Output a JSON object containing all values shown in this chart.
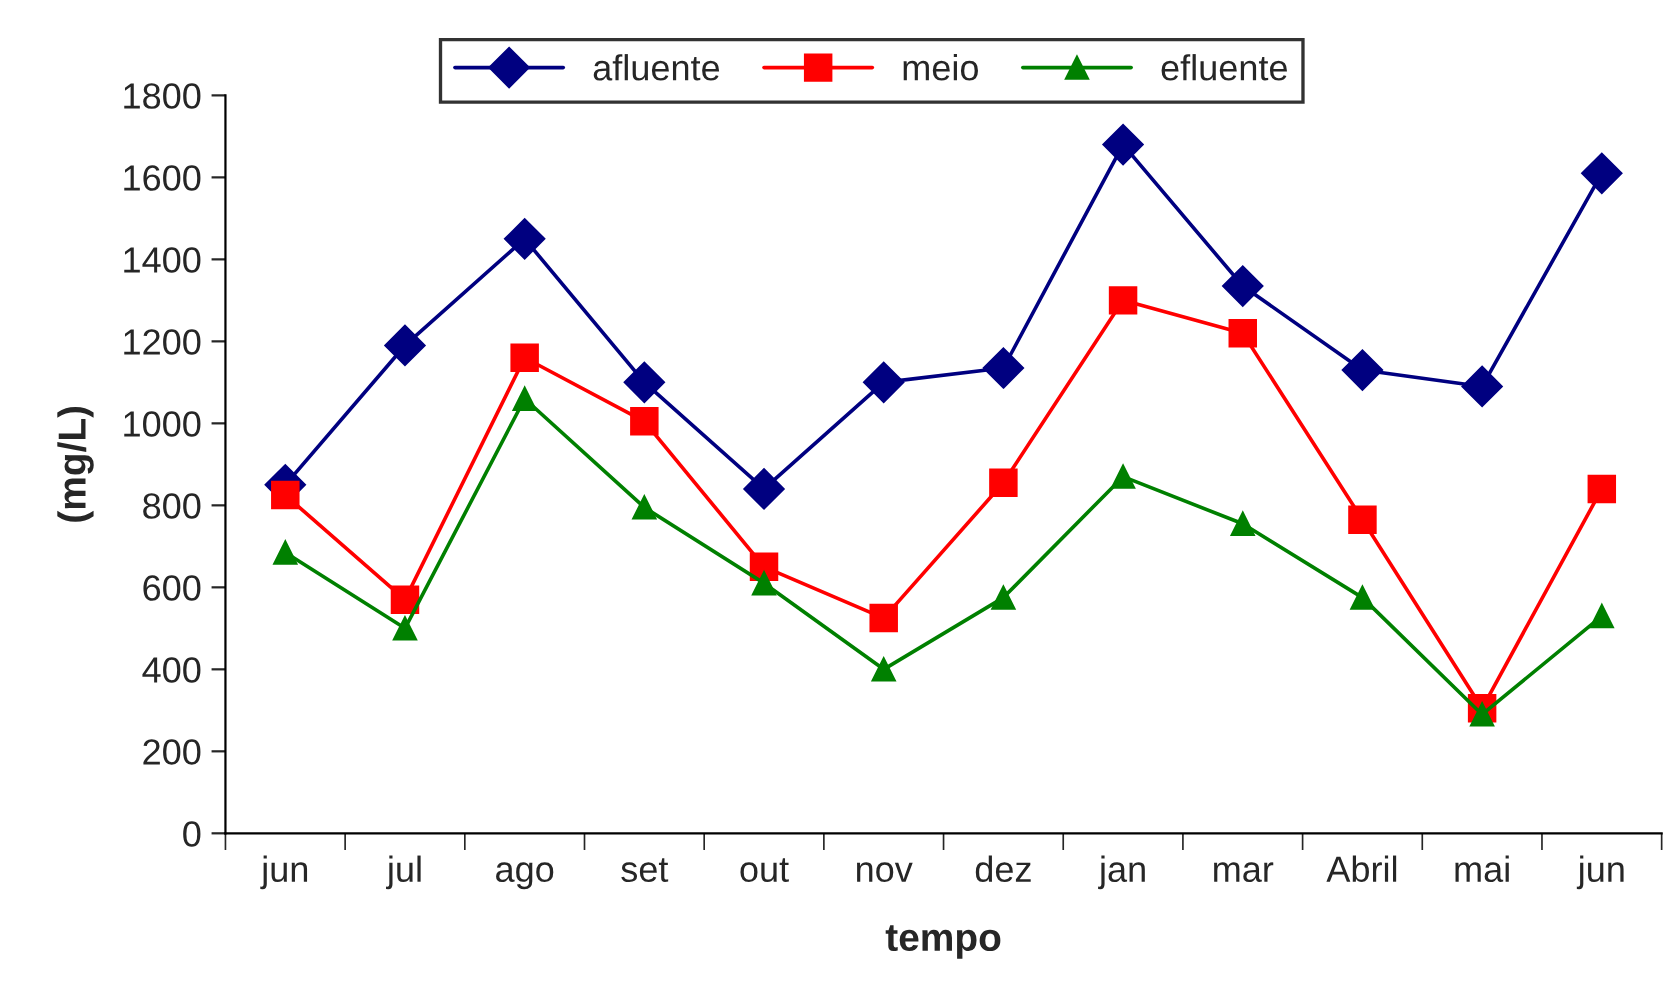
{
  "chart_data": {
    "type": "line",
    "xlabel": "tempo",
    "ylabel": "(mg/L)",
    "categories": [
      "jun",
      "jul",
      "ago",
      "set",
      "out",
      "nov",
      "dez",
      "jan",
      "mar",
      "Abril",
      "mai",
      "jun"
    ],
    "series": [
      {
        "name": "afluente",
        "color": "#000080",
        "marker": "diamond",
        "values": [
          850,
          1190,
          1450,
          1100,
          840,
          1100,
          1135,
          1680,
          1335,
          1130,
          1090,
          1610
        ]
      },
      {
        "name": "meio",
        "color": "#ff0000",
        "marker": "square",
        "values": [
          825,
          570,
          1160,
          1005,
          650,
          525,
          855,
          1300,
          1220,
          765,
          305,
          840
        ]
      },
      {
        "name": "efluente",
        "color": "#008000",
        "marker": "triangle",
        "values": [
          685,
          500,
          1060,
          795,
          610,
          400,
          575,
          870,
          755,
          575,
          290,
          530
        ]
      }
    ],
    "ylim": [
      0,
      1800
    ],
    "yticks": [
      0,
      200,
      400,
      600,
      800,
      1000,
      1200,
      1400,
      1600,
      1800
    ],
    "grid": false,
    "legend": "top",
    "line_style": "solid"
  }
}
